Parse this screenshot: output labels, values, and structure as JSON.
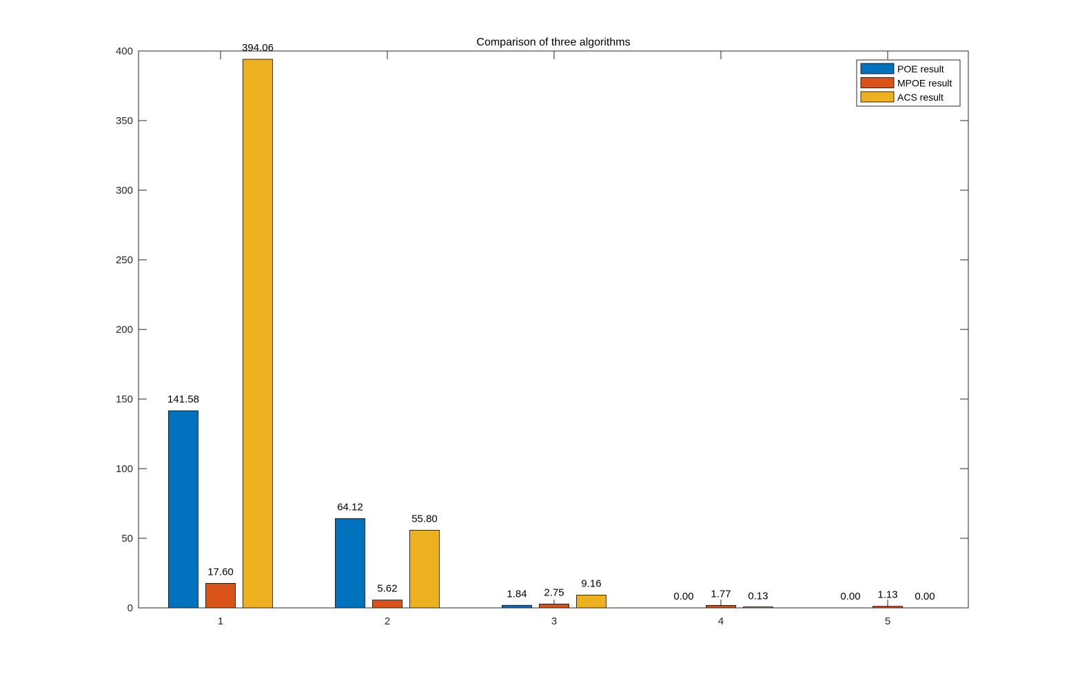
{
  "chart_data": {
    "type": "bar",
    "title": "Comparison of three algorithms",
    "xlabel": "",
    "ylabel": "",
    "categories": [
      "1",
      "2",
      "3",
      "4",
      "5"
    ],
    "ylim": [
      0,
      400
    ],
    "yticks": [
      0,
      50,
      100,
      150,
      200,
      250,
      300,
      350,
      400
    ],
    "grid": false,
    "legend_position": "top-right",
    "series": [
      {
        "name": "POE result",
        "color": "#0072BD",
        "values": [
          141.58,
          64.12,
          1.84,
          0.0,
          0.0
        ],
        "labels": [
          "141.58",
          "64.12",
          "1.84",
          "0.00",
          "0.00"
        ]
      },
      {
        "name": "MPOE result",
        "color": "#D95319",
        "values": [
          17.6,
          5.62,
          2.75,
          1.77,
          1.13
        ],
        "labels": [
          "17.60",
          "5.62",
          "2.75",
          "1.77",
          "1.13"
        ]
      },
      {
        "name": "ACS result",
        "color": "#EDB120",
        "values": [
          394.06,
          55.8,
          9.16,
          0.13,
          0.0
        ],
        "labels": [
          "394.06",
          "55.80",
          "9.16",
          "0.13",
          "0.00"
        ]
      }
    ]
  }
}
